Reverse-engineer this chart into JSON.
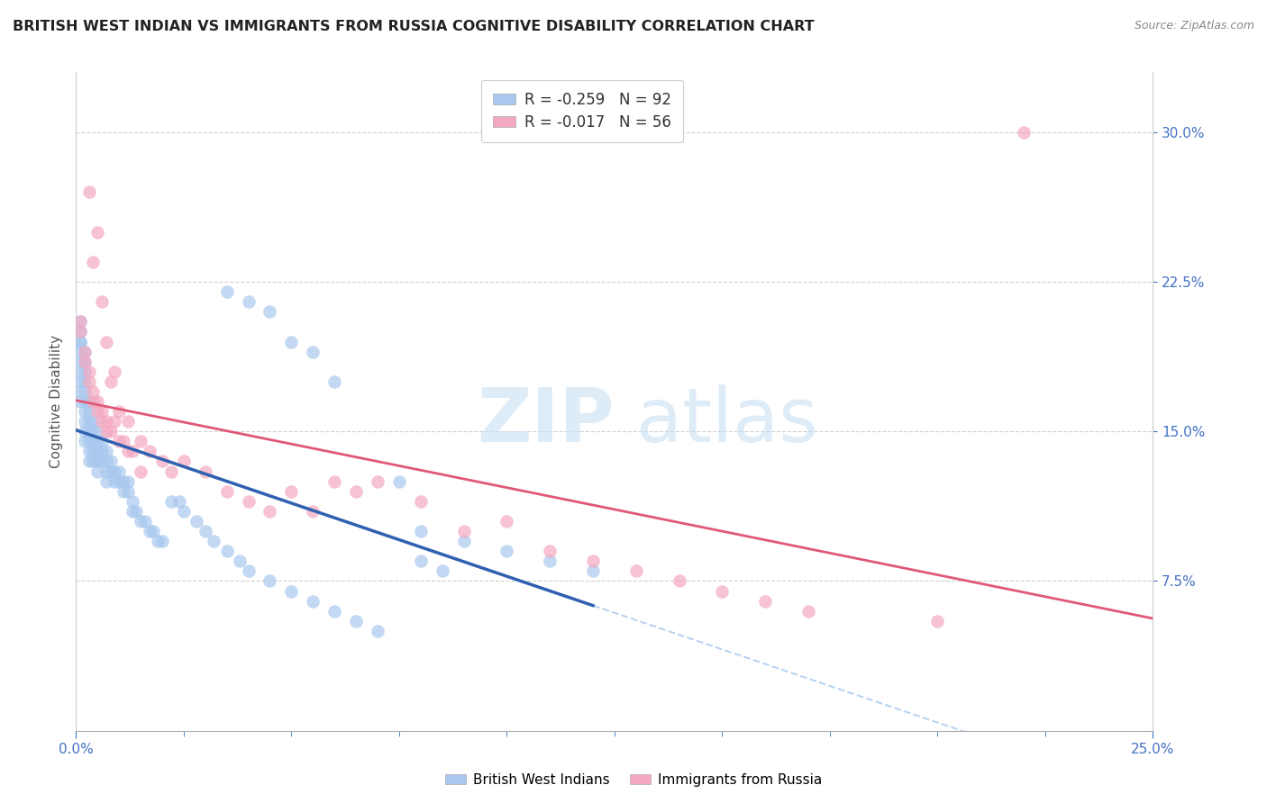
{
  "title": "BRITISH WEST INDIAN VS IMMIGRANTS FROM RUSSIA COGNITIVE DISABILITY CORRELATION CHART",
  "source_text": "Source: ZipAtlas.com",
  "ylabel": "Cognitive Disability",
  "ytick_vals": [
    0.075,
    0.15,
    0.225,
    0.3
  ],
  "ytick_labels": [
    "7.5%",
    "15.0%",
    "22.5%",
    "30.0%"
  ],
  "xmin": 0.0,
  "xmax": 0.25,
  "ymin": 0.0,
  "ymax": 0.33,
  "blue_color": "#A8C8EE",
  "pink_color": "#F4A8C0",
  "blue_line_color": "#3060B0",
  "pink_line_color": "#E05878",
  "gray_dash_color": "#A8C8EE",
  "blue_label": "British West Indians",
  "pink_label": "Immigrants from Russia",
  "blue_R": -0.259,
  "blue_N": 92,
  "pink_R": -0.017,
  "pink_N": 56,
  "blue_points_x": [
    0.001,
    0.001,
    0.001,
    0.001,
    0.001,
    0.001,
    0.001,
    0.001,
    0.001,
    0.001,
    0.002,
    0.002,
    0.002,
    0.002,
    0.002,
    0.002,
    0.002,
    0.002,
    0.002,
    0.002,
    0.003,
    0.003,
    0.003,
    0.003,
    0.003,
    0.003,
    0.003,
    0.004,
    0.004,
    0.004,
    0.004,
    0.004,
    0.005,
    0.005,
    0.005,
    0.005,
    0.005,
    0.006,
    0.006,
    0.006,
    0.007,
    0.007,
    0.007,
    0.007,
    0.008,
    0.008,
    0.009,
    0.009,
    0.01,
    0.01,
    0.011,
    0.011,
    0.012,
    0.012,
    0.013,
    0.013,
    0.014,
    0.015,
    0.016,
    0.017,
    0.018,
    0.019,
    0.02,
    0.022,
    0.024,
    0.025,
    0.028,
    0.03,
    0.032,
    0.035,
    0.038,
    0.04,
    0.045,
    0.05,
    0.055,
    0.06,
    0.065,
    0.07,
    0.08,
    0.09,
    0.1,
    0.11,
    0.12,
    0.035,
    0.04,
    0.045,
    0.05,
    0.055,
    0.06,
    0.075,
    0.08,
    0.085
  ],
  "blue_points_y": [
    0.185,
    0.19,
    0.195,
    0.195,
    0.2,
    0.205,
    0.175,
    0.18,
    0.165,
    0.17,
    0.18,
    0.185,
    0.19,
    0.175,
    0.17,
    0.165,
    0.16,
    0.155,
    0.145,
    0.15,
    0.165,
    0.16,
    0.155,
    0.15,
    0.145,
    0.14,
    0.135,
    0.155,
    0.15,
    0.145,
    0.14,
    0.135,
    0.15,
    0.145,
    0.14,
    0.135,
    0.13,
    0.145,
    0.14,
    0.135,
    0.14,
    0.135,
    0.13,
    0.125,
    0.135,
    0.13,
    0.13,
    0.125,
    0.13,
    0.125,
    0.125,
    0.12,
    0.125,
    0.12,
    0.115,
    0.11,
    0.11,
    0.105,
    0.105,
    0.1,
    0.1,
    0.095,
    0.095,
    0.115,
    0.115,
    0.11,
    0.105,
    0.1,
    0.095,
    0.09,
    0.085,
    0.08,
    0.075,
    0.07,
    0.065,
    0.06,
    0.055,
    0.05,
    0.1,
    0.095,
    0.09,
    0.085,
    0.08,
    0.22,
    0.215,
    0.21,
    0.195,
    0.19,
    0.175,
    0.125,
    0.085,
    0.08
  ],
  "pink_points_x": [
    0.001,
    0.001,
    0.002,
    0.002,
    0.003,
    0.003,
    0.004,
    0.004,
    0.005,
    0.005,
    0.006,
    0.006,
    0.007,
    0.007,
    0.008,
    0.009,
    0.01,
    0.011,
    0.012,
    0.013,
    0.015,
    0.017,
    0.02,
    0.022,
    0.025,
    0.03,
    0.035,
    0.04,
    0.045,
    0.05,
    0.055,
    0.06,
    0.065,
    0.07,
    0.08,
    0.09,
    0.1,
    0.11,
    0.12,
    0.13,
    0.14,
    0.15,
    0.16,
    0.17,
    0.2,
    0.22,
    0.003,
    0.004,
    0.005,
    0.006,
    0.007,
    0.008,
    0.009,
    0.01,
    0.012,
    0.015
  ],
  "pink_points_y": [
    0.2,
    0.205,
    0.185,
    0.19,
    0.175,
    0.18,
    0.17,
    0.165,
    0.16,
    0.165,
    0.155,
    0.16,
    0.155,
    0.15,
    0.15,
    0.155,
    0.145,
    0.145,
    0.14,
    0.14,
    0.145,
    0.14,
    0.135,
    0.13,
    0.135,
    0.13,
    0.12,
    0.115,
    0.11,
    0.12,
    0.11,
    0.125,
    0.12,
    0.125,
    0.115,
    0.1,
    0.105,
    0.09,
    0.085,
    0.08,
    0.075,
    0.07,
    0.065,
    0.06,
    0.055,
    0.3,
    0.27,
    0.235,
    0.25,
    0.215,
    0.195,
    0.175,
    0.18,
    0.16,
    0.155,
    0.13
  ]
}
